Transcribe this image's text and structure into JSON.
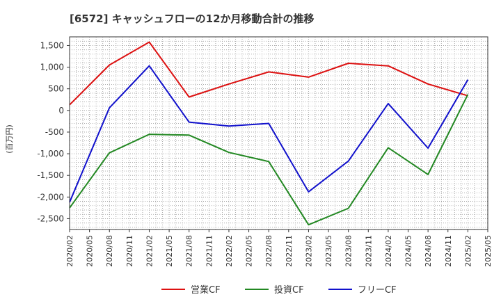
{
  "chart_data": {
    "type": "line",
    "title": "[6572]  キャッシュフローの12か月移動合計の推移",
    "ylabel": "(百万円)",
    "xlabel": "",
    "ylim": [
      -2750,
      1700
    ],
    "yticks": [
      1500,
      1000,
      500,
      0,
      -500,
      -1000,
      -1500,
      -2000,
      -2500
    ],
    "ytick_labels": [
      "1,500",
      "1,000",
      "500",
      "0",
      "-500",
      "-1,000",
      "-1,500",
      "-2,000",
      "-2,500"
    ],
    "x_start": "2020/02",
    "x_end": "2025/05",
    "xtick_labels": [
      "2020/02",
      "2020/05",
      "2020/08",
      "2020/11",
      "2021/02",
      "2021/05",
      "2021/08",
      "2021/11",
      "2022/02",
      "2022/05",
      "2022/08",
      "2022/11",
      "2023/02",
      "2023/05",
      "2023/08",
      "2023/11",
      "2024/02",
      "2024/05",
      "2024/08",
      "2024/11",
      "2025/02",
      "2025/05"
    ],
    "grid": true,
    "legend_position": "bottom",
    "series": [
      {
        "name": "営業CF",
        "color": "#dd1111",
        "points": [
          {
            "x": "2020/02",
            "y": 130
          },
          {
            "x": "2020/08",
            "y": 1050
          },
          {
            "x": "2021/02",
            "y": 1580
          },
          {
            "x": "2021/08",
            "y": 310
          },
          {
            "x": "2022/02",
            "y": 610
          },
          {
            "x": "2022/08",
            "y": 890
          },
          {
            "x": "2023/02",
            "y": 770
          },
          {
            "x": "2023/08",
            "y": 1090
          },
          {
            "x": "2024/02",
            "y": 1030
          },
          {
            "x": "2024/08",
            "y": 610
          },
          {
            "x": "2025/02",
            "y": 340
          }
        ]
      },
      {
        "name": "投資CF",
        "color": "#228822",
        "points": [
          {
            "x": "2020/02",
            "y": -2250
          },
          {
            "x": "2020/08",
            "y": -980
          },
          {
            "x": "2021/02",
            "y": -550
          },
          {
            "x": "2021/08",
            "y": -570
          },
          {
            "x": "2022/02",
            "y": -970
          },
          {
            "x": "2022/08",
            "y": -1180
          },
          {
            "x": "2023/02",
            "y": -2640
          },
          {
            "x": "2023/08",
            "y": -2260
          },
          {
            "x": "2024/02",
            "y": -860
          },
          {
            "x": "2024/08",
            "y": -1480
          },
          {
            "x": "2025/02",
            "y": 370
          }
        ]
      },
      {
        "name": "フリーCF",
        "color": "#1111cc",
        "points": [
          {
            "x": "2020/02",
            "y": -2120
          },
          {
            "x": "2020/08",
            "y": 60
          },
          {
            "x": "2021/02",
            "y": 1030
          },
          {
            "x": "2021/08",
            "y": -270
          },
          {
            "x": "2022/02",
            "y": -360
          },
          {
            "x": "2022/08",
            "y": -300
          },
          {
            "x": "2023/02",
            "y": -1880
          },
          {
            "x": "2023/08",
            "y": -1170
          },
          {
            "x": "2024/02",
            "y": 160
          },
          {
            "x": "2024/08",
            "y": -870
          },
          {
            "x": "2025/02",
            "y": 710
          }
        ]
      }
    ]
  }
}
